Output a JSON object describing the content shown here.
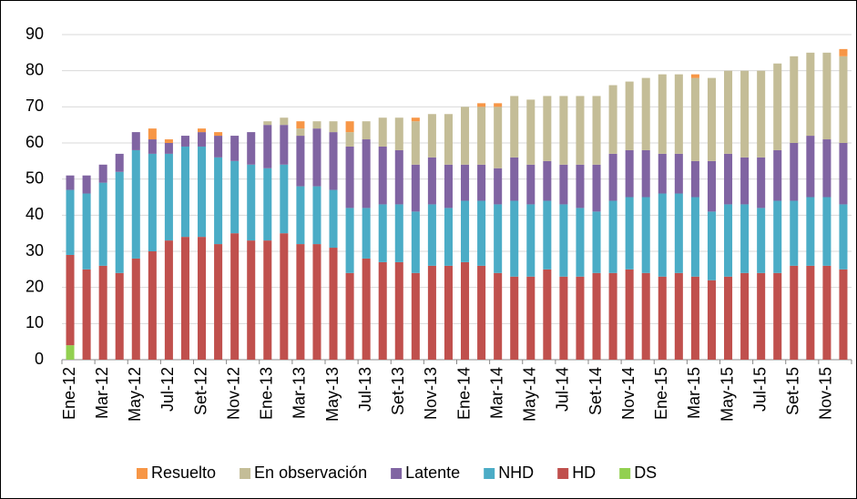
{
  "chart_data": {
    "type": "stacked-bar",
    "categories": [
      "Ene-12",
      null,
      "Mar-12",
      null,
      "May-12",
      null,
      "Jul-12",
      null,
      "Set-12",
      null,
      "Nov-12",
      null,
      "Ene-13",
      null,
      "Mar-13",
      null,
      "May-13",
      null,
      "Jul-13",
      null,
      "Set-13",
      null,
      "Nov-13",
      null,
      "Ene-14",
      null,
      "Mar-14",
      null,
      "May-14",
      null,
      "Jul-14",
      null,
      "Set-14",
      null,
      "Nov-14",
      null,
      "Ene-15",
      null,
      "Mar-15",
      null,
      "May-15",
      null,
      "Jul-15",
      null,
      "Set-15",
      null,
      "Nov-15",
      null
    ],
    "series": [
      {
        "name": "Resuelto",
        "color": "#f79646",
        "values": [
          0,
          0,
          0,
          0,
          0,
          3,
          1,
          0,
          1,
          1,
          0,
          0,
          0,
          0,
          2,
          0,
          0,
          3,
          0,
          0,
          0,
          1,
          0,
          0,
          0,
          1,
          1,
          0,
          0,
          0,
          0,
          0,
          0,
          0,
          0,
          0,
          0,
          0,
          1,
          0,
          0,
          0,
          0,
          0,
          0,
          0,
          0,
          2
        ]
      },
      {
        "name": "En observación",
        "color": "#c4bd97",
        "values": [
          0,
          0,
          0,
          0,
          0,
          0,
          0,
          0,
          0,
          0,
          0,
          0,
          1,
          2,
          2,
          2,
          3,
          4,
          5,
          8,
          9,
          12,
          12,
          14,
          16,
          16,
          17,
          17,
          18,
          18,
          19,
          19,
          19,
          19,
          19,
          20,
          22,
          22,
          23,
          23,
          23,
          24,
          24,
          24,
          24,
          23,
          24,
          24
        ]
      },
      {
        "name": "Latente",
        "color": "#8064a2",
        "values": [
          4,
          5,
          5,
          5,
          5,
          4,
          3,
          3,
          4,
          6,
          7,
          9,
          12,
          11,
          14,
          16,
          16,
          17,
          19,
          16,
          15,
          13,
          13,
          12,
          10,
          10,
          10,
          12,
          11,
          11,
          11,
          12,
          13,
          13,
          13,
          13,
          11,
          11,
          10,
          14,
          14,
          13,
          14,
          14,
          16,
          17,
          16,
          17
        ]
      },
      {
        "name": "NHD",
        "color": "#4bacc6",
        "values": [
          18,
          21,
          23,
          28,
          30,
          27,
          24,
          25,
          25,
          24,
          20,
          21,
          20,
          19,
          16,
          16,
          16,
          18,
          14,
          16,
          16,
          17,
          17,
          16,
          17,
          18,
          19,
          21,
          20,
          19,
          20,
          19,
          17,
          20,
          20,
          21,
          23,
          22,
          22,
          19,
          20,
          19,
          18,
          20,
          18,
          19,
          19,
          18
        ]
      },
      {
        "name": "HD",
        "color": "#c0504d",
        "values": [
          25,
          25,
          26,
          24,
          28,
          30,
          33,
          34,
          34,
          32,
          35,
          33,
          33,
          35,
          32,
          32,
          31,
          24,
          28,
          27,
          27,
          24,
          26,
          26,
          27,
          26,
          24,
          23,
          23,
          25,
          23,
          23,
          24,
          24,
          25,
          24,
          23,
          24,
          23,
          22,
          23,
          24,
          24,
          24,
          26,
          26,
          26,
          25
        ]
      },
      {
        "name": "DS",
        "color": "#92d050",
        "values": [
          4,
          0,
          0,
          0,
          0,
          0,
          0,
          0,
          0,
          0,
          0,
          0,
          0,
          0,
          0,
          0,
          0,
          0,
          0,
          0,
          0,
          0,
          0,
          0,
          0,
          0,
          0,
          0,
          0,
          0,
          0,
          0,
          0,
          0,
          0,
          0,
          0,
          0,
          0,
          0,
          0,
          0,
          0,
          0,
          0,
          0,
          0,
          0
        ]
      }
    ],
    "ylim": [
      0,
      90
    ],
    "yticks": [
      0,
      10,
      20,
      30,
      40,
      50,
      60,
      70,
      80,
      90
    ],
    "grid": true,
    "legend": "bottom"
  }
}
